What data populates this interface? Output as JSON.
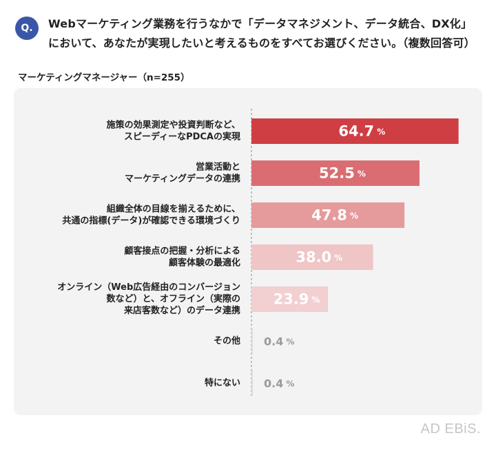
{
  "question": {
    "badge": "Q.",
    "line1": "Webマーケティング業務を行うなかで「データマネジメント、データ統合、DX化」",
    "line2": "において、あなたが実現したいと考えるものをすべてお選びください。（複数回答可）"
  },
  "segment_label": "マーケティングマネージャー（n=255）",
  "logo": "AD EBiS.",
  "chart_data": {
    "type": "bar",
    "orientation": "horizontal",
    "unit": "%",
    "categories": [
      [
        "施策の効果測定や投資判断など、",
        "スピーディーなPDCAの実現"
      ],
      [
        "営業活動と",
        "マーケティングデータの連携"
      ],
      [
        "組織全体の目線を揃えるために、",
        "共通の指標(データ)が確認できる環境づくり"
      ],
      [
        "顧客接点の把握・分析による",
        "顧客体験の最適化"
      ],
      [
        "オンライン（Web広告経由のコンバージョン",
        "数など）と、オフライン（実際の",
        "来店客数など）のデータ連携"
      ],
      [
        "その他"
      ],
      [
        "特にない"
      ]
    ],
    "values": [
      64.7,
      52.5,
      47.8,
      38.0,
      23.9,
      0.4,
      0.4
    ],
    "value_labels": [
      "64.7",
      "52.5",
      "47.8",
      "38.0",
      "23.9",
      "0.4",
      "0.4"
    ],
    "colors": [
      "#cf3e43",
      "#da6d72",
      "#e59a9c",
      "#efc5c6",
      "#f2cfd1",
      "#dcdcdc",
      "#dcdcdc"
    ],
    "label_colors": [
      "#ffffff",
      "#ffffff",
      "#ffffff",
      "#ffffff",
      "#ffffff",
      "#9a9a9a",
      "#9a9a9a"
    ],
    "xlim": [
      0,
      65
    ],
    "grid": false
  }
}
